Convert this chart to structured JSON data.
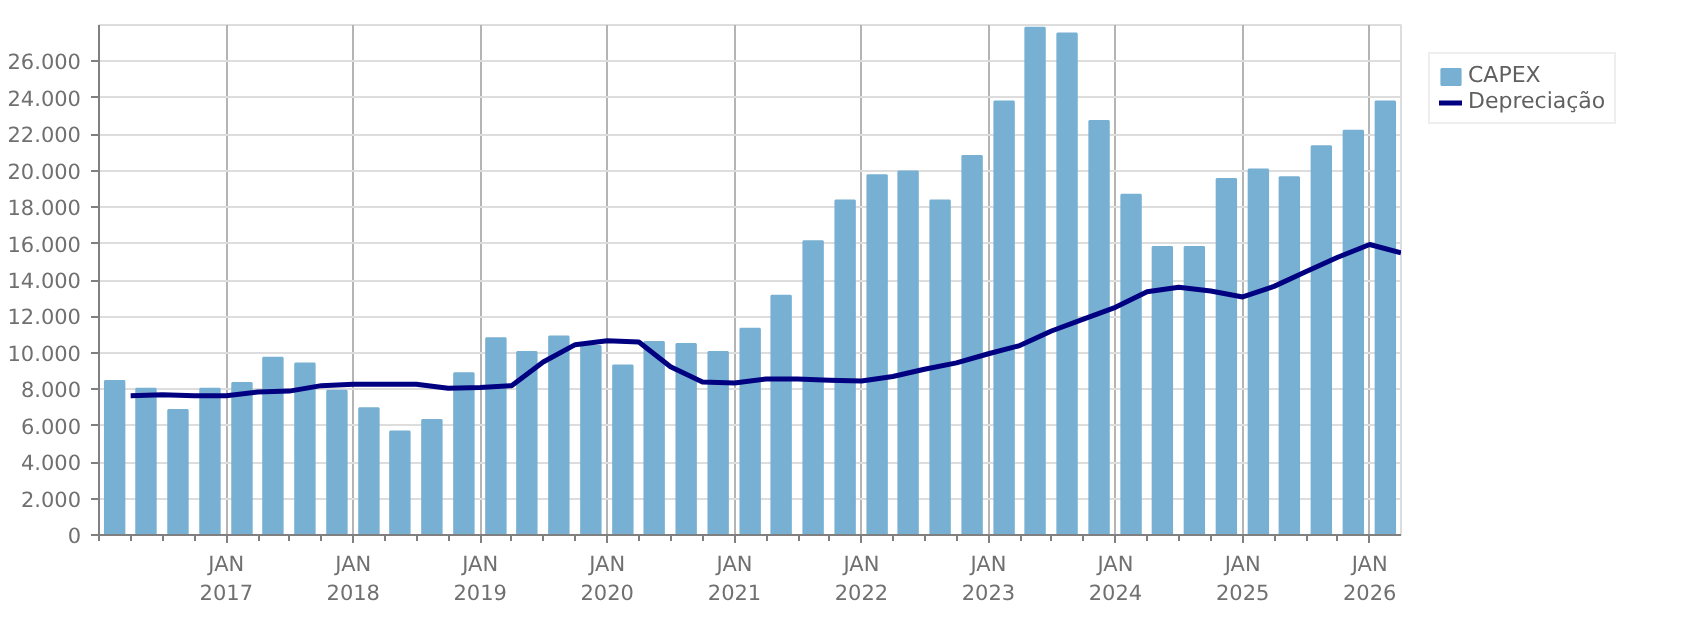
{
  "chart_data": {
    "type": "bar",
    "x": [
      "2016-02-15",
      "2016-05-15",
      "2016-08-15",
      "2016-11-15",
      "2017-02-15",
      "2017-05-15",
      "2017-08-15",
      "2017-11-15",
      "2018-02-15",
      "2018-05-15",
      "2018-08-15",
      "2018-11-15",
      "2019-02-15",
      "2019-05-15",
      "2019-08-15",
      "2019-11-15",
      "2020-02-15",
      "2020-05-15",
      "2020-08-15",
      "2020-11-15",
      "2021-02-15",
      "2021-05-15",
      "2021-08-15",
      "2021-11-15",
      "2022-02-15",
      "2022-05-15",
      "2022-08-15",
      "2022-11-15",
      "2023-02-15",
      "2023-05-15",
      "2023-08-15",
      "2023-11-15",
      "2024-02-15",
      "2024-05-15",
      "2024-08-15",
      "2024-11-15",
      "2025-02-15",
      "2025-05-15",
      "2025-08-15",
      "2025-11-15",
      "2026-02-15"
    ],
    "series": [
      {
        "name": "CAPEX",
        "color": "#77b0d2",
        "values": [
          8450,
          8030,
          6860,
          8030,
          8350,
          9730,
          9410,
          7920,
          6960,
          5680,
          6320,
          8880,
          10800,
          10050,
          10900,
          10370,
          9310,
          10590,
          10480,
          10050,
          11330,
          13140,
          16130,
          18360,
          19750,
          19960,
          18360,
          20810,
          23800,
          27850,
          27530,
          22730,
          18680,
          15810,
          15810,
          19540,
          20070,
          19640,
          21350,
          22200,
          23800
        ]
      },
      {
        "name": "Depreciação",
        "type": "line",
        "color": "#000080",
        "x": [
          "2016-04-01",
          "2016-07-01",
          "2016-10-01",
          "2017-01-01",
          "2017-04-01",
          "2017-07-01",
          "2017-10-01",
          "2018-01-01",
          "2018-04-01",
          "2018-07-01",
          "2018-10-01",
          "2019-01-01",
          "2019-04-01",
          "2019-07-01",
          "2019-10-01",
          "2020-01-01",
          "2020-04-01",
          "2020-07-01",
          "2020-10-01",
          "2021-01-01",
          "2021-04-01",
          "2021-07-01",
          "2021-10-01",
          "2022-01-01",
          "2022-04-01",
          "2022-07-01",
          "2022-10-01",
          "2023-01-01",
          "2023-04-01",
          "2023-07-01",
          "2023-10-01",
          "2024-01-01",
          "2024-04-01",
          "2024-07-01",
          "2024-10-01",
          "2025-01-01",
          "2025-04-01",
          "2025-07-01",
          "2025-10-01",
          "2026-01-01",
          "2026-04-01"
        ],
        "values": [
          7650,
          7700,
          7650,
          7650,
          7850,
          7900,
          8200,
          8280,
          8280,
          8280,
          8060,
          8100,
          8200,
          9500,
          10450,
          10660,
          10600,
          9240,
          8400,
          8350,
          8560,
          8560,
          8500,
          8450,
          8700,
          9100,
          9450,
          9950,
          10400,
          11200,
          11850,
          12500,
          13350,
          13600,
          13400,
          13070,
          13650,
          14450,
          15250,
          15950,
          15490
        ]
      }
    ],
    "xlim": [
      "2016-01-01",
      "2026-04-01"
    ],
    "xticks": [
      {
        "value": "2017-01-01",
        "label": "JAN\n2017"
      },
      {
        "value": "2018-01-01",
        "label": "JAN\n2018"
      },
      {
        "value": "2019-01-01",
        "label": "JAN\n2019"
      },
      {
        "value": "2020-01-01",
        "label": "JAN\n2020"
      },
      {
        "value": "2021-01-01",
        "label": "JAN\n2021"
      },
      {
        "value": "2022-01-01",
        "label": "JAN\n2022"
      },
      {
        "value": "2023-01-01",
        "label": "JAN\n2023"
      },
      {
        "value": "2024-01-01",
        "label": "JAN\n2024"
      },
      {
        "value": "2025-01-01",
        "label": "JAN\n2025"
      },
      {
        "value": "2026-01-01",
        "label": "JAN\n2026"
      }
    ],
    "ylim": [
      0,
      28000
    ],
    "yticks": [
      {
        "value": 0,
        "label": "0"
      },
      {
        "value": 2000,
        "label": "2.000"
      },
      {
        "value": 4000,
        "label": "4.000"
      },
      {
        "value": 6000,
        "label": "6.000"
      },
      {
        "value": 8000,
        "label": "8.000"
      },
      {
        "value": 10000,
        "label": "10.000"
      },
      {
        "value": 12000,
        "label": "12.000"
      },
      {
        "value": 14000,
        "label": "14.000"
      },
      {
        "value": 16000,
        "label": "16.000"
      },
      {
        "value": 18000,
        "label": "18.000"
      },
      {
        "value": 20000,
        "label": "20.000"
      },
      {
        "value": 22000,
        "label": "22.000"
      },
      {
        "value": 24000,
        "label": "24.000"
      },
      {
        "value": 26000,
        "label": "26.000"
      }
    ],
    "grid": true,
    "legend": "top right"
  }
}
